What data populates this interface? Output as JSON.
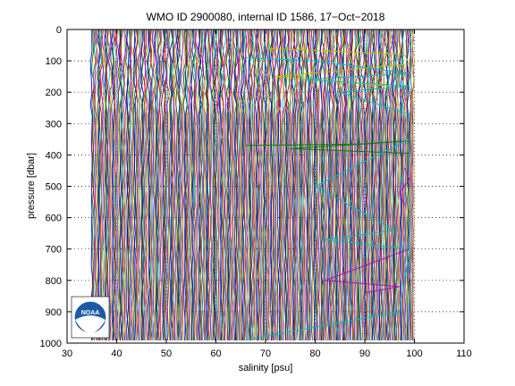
{
  "chart_data": {
    "type": "line",
    "title": "WMO ID 2900080, internal ID 1586, 17−Oct−2018",
    "xlabel": "salinity [psu]",
    "ylabel": "pressure [dbar]",
    "xlim": [
      30,
      110
    ],
    "ylim": [
      1000,
      0
    ],
    "y_reversed": true,
    "xticks": [
      30,
      40,
      50,
      60,
      70,
      80,
      90,
      100,
      110
    ],
    "yticks": [
      0,
      100,
      200,
      300,
      400,
      500,
      600,
      700,
      800,
      900,
      1000
    ],
    "grid": true,
    "colors": [
      "#0000ff",
      "#008000",
      "#ff0000",
      "#00bfbf",
      "#bf00bf",
      "#bfbf00",
      "#404040"
    ],
    "band": {
      "x_min": 35,
      "x_max": 100
    },
    "series": [
      {
        "color": "#bfbf00",
        "x": [
          70,
          85,
          98,
          99,
          72,
          95
        ],
        "y": [
          60,
          70,
          80,
          110,
          150,
          180
        ]
      },
      {
        "color": "#00bfbf",
        "x": [
          66,
          80,
          99,
          78,
          99,
          85,
          99
        ],
        "y": [
          90,
          100,
          140,
          160,
          180,
          200,
          270
        ]
      },
      {
        "color": "#008000",
        "x": [
          66,
          90,
          99,
          75,
          99
        ],
        "y": [
          370,
          365,
          355,
          380,
          395
        ]
      },
      {
        "color": "#00bfbf",
        "x": [
          99,
          80,
          96,
          82,
          99,
          97,
          66
        ],
        "y": [
          350,
          500,
          640,
          670,
          700,
          900,
          990
        ]
      },
      {
        "color": "#bf00bf",
        "x": [
          99,
          82,
          97,
          90
        ],
        "y": [
          700,
          800,
          820,
          840
        ]
      },
      {
        "color": "#bf00bf",
        "x": [
          98,
          99,
          97,
          98
        ],
        "y": [
          440,
          480,
          520,
          560
        ]
      }
    ]
  },
  "logo": {
    "text": "NOAA",
    "name": "noaa-logo"
  }
}
